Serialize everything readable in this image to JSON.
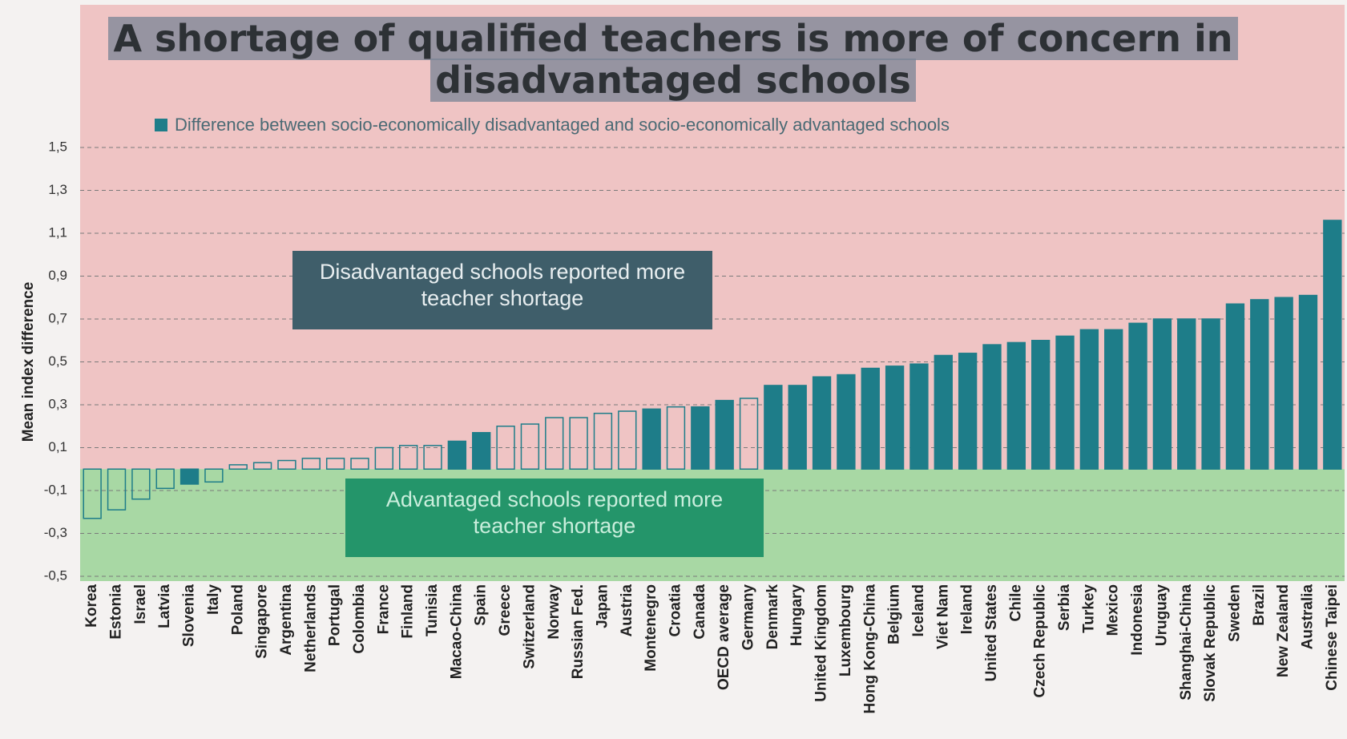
{
  "chart_data": {
    "type": "bar",
    "title": "A shortage of qualified teachers is more of concern in disadvantaged schools",
    "y_label": "Mean index difference",
    "annotations": [
      "Disadvantaged schools reported more teacher shortage",
      "Advantaged schools reported more teacher shortage"
    ],
    "categories": [
      "Korea",
      "Estonia",
      "Israel",
      "Latvia",
      "Slovenia",
      "Italy",
      "Poland",
      "Singapore",
      "Argentina",
      "Netherlands",
      "Portugal",
      "Colombia",
      "France",
      "Finland",
      "Tunisia",
      "Macao-China",
      "Spain",
      "Greece",
      "Switzerland",
      "Norway",
      "Russian Fed.",
      "Japan",
      "Austria",
      "Montenegro",
      "Croatia",
      "Canada",
      "OECD average",
      "Germany",
      "Denmark",
      "Hungary",
      "United Kingdom",
      "Luxembourg",
      "Hong Kong-China",
      "Belgium",
      "Iceland",
      "Viet Nam",
      "Ireland",
      "United States",
      "Chile",
      "Czech Republic",
      "Serbia",
      "Turkey",
      "Mexico",
      "Indonesia",
      "Uruguay",
      "Shanghai-China",
      "Slovak Republic",
      "Sweden",
      "Brazil",
      "New Zealand",
      "Australia",
      "Chinese Taipei"
    ],
    "series": [
      {
        "name": "Difference between socio-economically disadvantaged and socio-economically advantaged schools",
        "color": "#1e7d89",
        "values": [
          -0.23,
          -0.19,
          -0.14,
          -0.09,
          -0.07,
          -0.06,
          0.02,
          0.03,
          0.04,
          0.05,
          0.05,
          0.05,
          0.1,
          0.11,
          0.11,
          0.13,
          0.17,
          0.2,
          0.21,
          0.24,
          0.24,
          0.26,
          0.27,
          0.28,
          0.29,
          0.29,
          0.32,
          0.33,
          0.39,
          0.39,
          0.43,
          0.44,
          0.47,
          0.48,
          0.49,
          0.53,
          0.54,
          0.58,
          0.59,
          0.6,
          0.62,
          0.65,
          0.65,
          0.68,
          0.7,
          0.7,
          0.7,
          0.77,
          0.79,
          0.8,
          0.81,
          1.16
        ],
        "filled": [
          false,
          false,
          false,
          false,
          true,
          false,
          false,
          false,
          false,
          false,
          false,
          false,
          false,
          false,
          false,
          true,
          true,
          false,
          false,
          false,
          false,
          false,
          false,
          true,
          false,
          true,
          true,
          false,
          true,
          true,
          true,
          true,
          true,
          true,
          true,
          true,
          true,
          true,
          true,
          true,
          true,
          true,
          true,
          true,
          true,
          true,
          true,
          true,
          true,
          true,
          true,
          true
        ]
      }
    ],
    "ylim": [
      -0.5,
      1.5
    ],
    "yticks": [
      {
        "value": 1.5,
        "label": "1,5"
      },
      {
        "value": 1.3,
        "label": "1,3"
      },
      {
        "value": 1.1,
        "label": "1,1"
      },
      {
        "value": 0.9,
        "label": "0,9"
      },
      {
        "value": 0.7,
        "label": "0,7"
      },
      {
        "value": 0.5,
        "label": "0,5"
      },
      {
        "value": 0.3,
        "label": "0,3"
      },
      {
        "value": 0.1,
        "label": "0,1"
      },
      {
        "value": -0.1,
        "label": "-0,1"
      },
      {
        "value": -0.3,
        "label": "-0,3"
      },
      {
        "value": -0.5,
        "label": "-0,5"
      }
    ],
    "grid": true,
    "positive_region_color": "#efc4c4",
    "negative_region_color": "#a8d8a4"
  }
}
